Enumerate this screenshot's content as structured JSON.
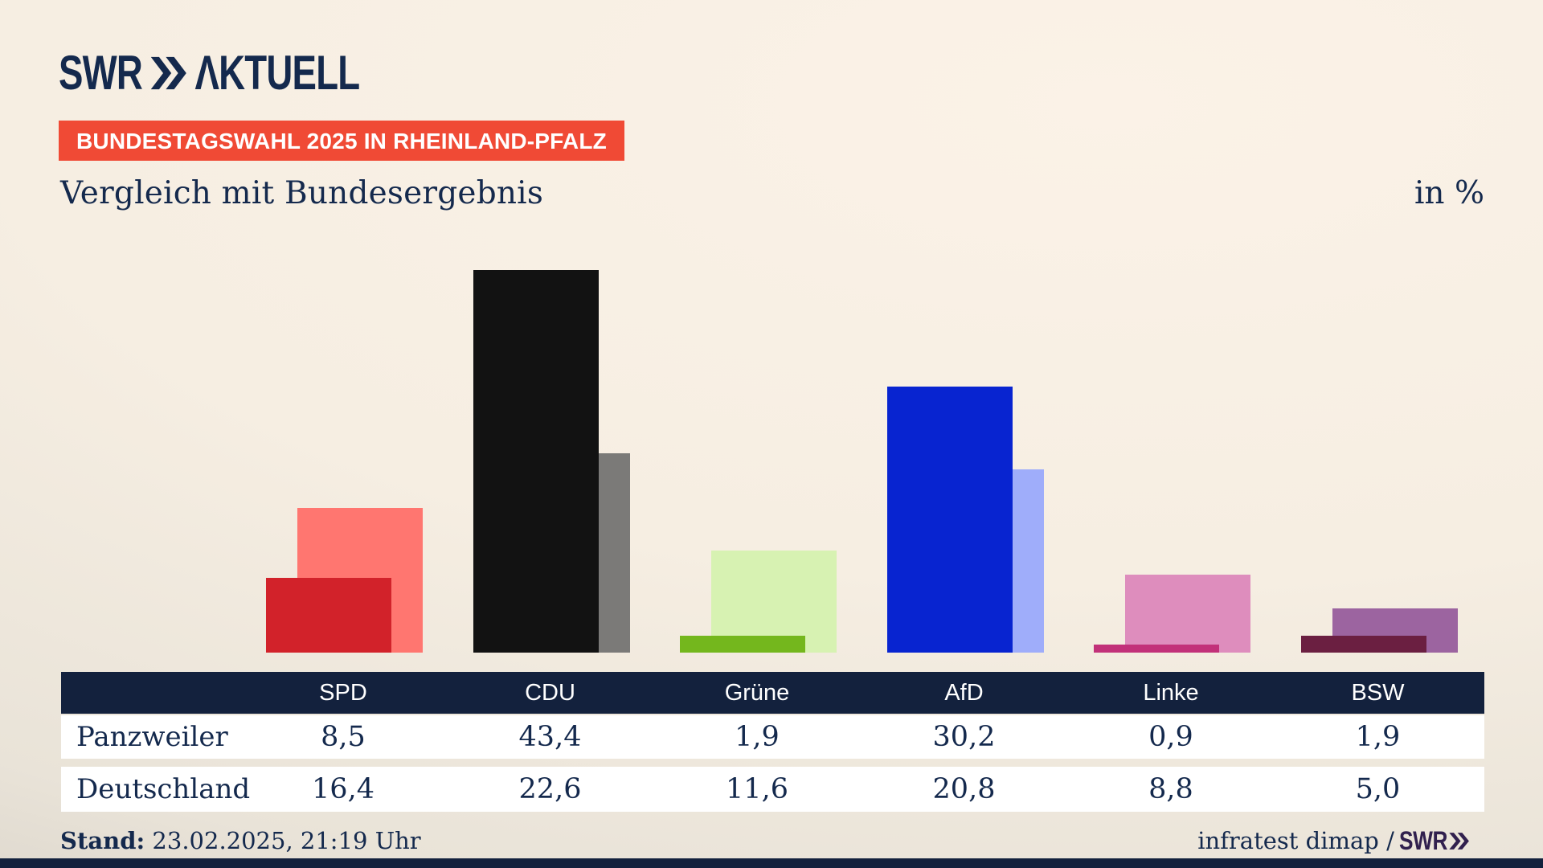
{
  "brand": {
    "logo_swr": "SWR",
    "logo_suffix": "ΛKTUELL",
    "footer_brand": "SWR"
  },
  "badge": {
    "text": "BUNDESTAGSWAHL 2025 IN RHEINLAND-PFALZ"
  },
  "title": {
    "text": "Vergleich mit Bundesergebnis",
    "unit": "in %"
  },
  "chart_data": {
    "type": "bar",
    "title": "Vergleich mit Bundesergebnis",
    "unit": "%",
    "categories": [
      "SPD",
      "CDU",
      "Grüne",
      "AfD",
      "Linke",
      "BSW"
    ],
    "series": [
      {
        "name": "Panzweiler",
        "values": [
          8.5,
          43.4,
          1.9,
          30.2,
          0.9,
          1.9
        ]
      },
      {
        "name": "Deutschland",
        "values": [
          16.4,
          22.6,
          11.6,
          20.8,
          8.8,
          5.0
        ]
      }
    ],
    "bar_colors": {
      "Panzweiler": [
        "#d2222a",
        "#121212",
        "#74b71d",
        "#0824d0",
        "#c23179",
        "#6b1f41"
      ],
      "Deutschland": [
        "#ff7670",
        "#7b7a78",
        "#d7f2b2",
        "#9fadfa",
        "#de8dbd",
        "#9c64a0"
      ]
    },
    "ylim": [
      0,
      45
    ],
    "grid": false,
    "legend": "table-below",
    "value_labels_on_bars": false
  },
  "table": {
    "column_headers": [
      "SPD",
      "CDU",
      "Grüne",
      "AfD",
      "Linke",
      "BSW"
    ],
    "rows": [
      {
        "label": "Panzweiler",
        "values": [
          "8,5",
          "43,4",
          "1,9",
          "30,2",
          "0,9",
          "1,9"
        ]
      },
      {
        "label": "Deutschland",
        "values": [
          "16,4",
          "22,6",
          "11,6",
          "20,8",
          "8,8",
          "5,0"
        ]
      }
    ]
  },
  "footer": {
    "stand_label": "Stand:",
    "stand_value": " 23.02.2025, 21:19 Uhr",
    "source": "infratest dimap / "
  },
  "colors": {
    "background_light": "#fbf2e7",
    "background_shadow": "#c9c3ba",
    "navy_text": "#14294d",
    "header_bg": "#13213d",
    "badge_bg": "#f04a35",
    "row_bg": "#ffffff",
    "footer_brand_color": "#31204e"
  }
}
